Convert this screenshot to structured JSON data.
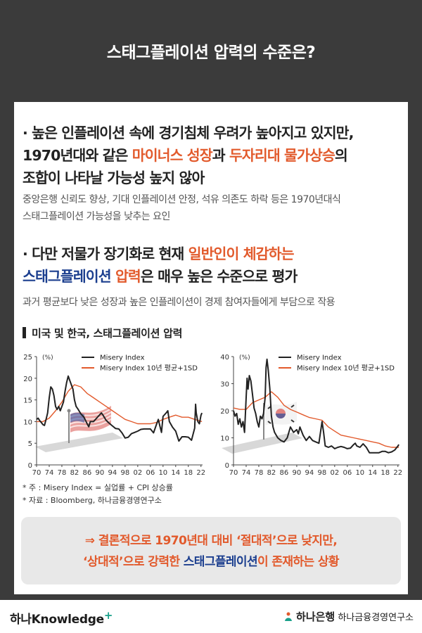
{
  "header": {
    "title": "스태그플레이션 압력의 수준은?"
  },
  "section1": {
    "line1": "· 높은 인플레이션 속에 경기침체 우려가 높아지고 있지만,",
    "line2_pre": "1970년대와 같은 ",
    "line2_hl1": "마이너스 성장",
    "line2_mid": "과 ",
    "line2_hl2": "두자리대 물가상승",
    "line2_post": "의",
    "line3": "조합이 나타날 가능성 높지 않아",
    "sub1": "중앙은행 신뢰도 향상, 기대 인플레이션 안정, 석유 의존도 하락 등은 1970년대식",
    "sub2": "스태그플레이션 가능성을 낮추는 요인"
  },
  "section2": {
    "line1_pre": "· 다만 저물가 장기화로 현재 ",
    "line1_hl": "일반인이 체감하는",
    "line2_hl_blue": "스태그플레이션",
    "line2_hl_red": " 압력",
    "line2_post": "은 매우 높은 수준으로 평가",
    "sub": "과거 평균보다 낮은 성장과 높은 인플레이션이 경제 참여자들에게 부담으로 작용"
  },
  "chart_title": "미국 및 한국, 스태그플레이션 압력",
  "chart_data": [
    {
      "type": "line",
      "country": "US",
      "unit": "(%)",
      "ylim": [
        0,
        25
      ],
      "yticks": [
        0,
        5,
        10,
        15,
        20,
        25
      ],
      "xticks": [
        "70",
        "74",
        "78",
        "82",
        "86",
        "90",
        "94",
        "98",
        "02",
        "06",
        "10",
        "14",
        "18",
        "22"
      ],
      "xlim": [
        1970,
        2022.5
      ],
      "series": [
        {
          "name": "Misery Index",
          "color": "#222222",
          "x": [
            1970,
            1970.5,
            1971,
            1971.5,
            1972,
            1972.5,
            1973,
            1973.5,
            1974,
            1974.5,
            1975,
            1975.5,
            1976,
            1976.5,
            1977,
            1977.5,
            1978,
            1978.5,
            1979,
            1979.5,
            1980,
            1980.5,
            1981,
            1981.5,
            1982,
            1982.5,
            1983,
            1984,
            1985,
            1986,
            1986.5,
            1987,
            1988,
            1989,
            1990,
            1990.5,
            1991,
            1992,
            1993,
            1994,
            1995,
            1996,
            1997,
            1998,
            1999,
            2000,
            2001,
            2002,
            2003,
            2004,
            2005,
            2006,
            2007,
            2008,
            2008.5,
            2009,
            2009.5,
            2010,
            2011,
            2011.5,
            2012,
            2013,
            2014,
            2015,
            2016,
            2017,
            2018,
            2019,
            2020,
            2020.3,
            2020.5,
            2021,
            2021.5,
            2022,
            2022.3
          ],
          "values": [
            10.5,
            10.8,
            10.2,
            9.8,
            9.3,
            9.1,
            10.5,
            12,
            15.5,
            18,
            17.5,
            16,
            13.5,
            12.8,
            13.5,
            12.5,
            13.5,
            14.5,
            17,
            19,
            20.5,
            19.5,
            18.5,
            17.5,
            15,
            13.5,
            13,
            11.8,
            11,
            9.5,
            8.8,
            10,
            10,
            10.8,
            11.6,
            12,
            11.5,
            10.3,
            9.6,
            9,
            8.4,
            8.3,
            7.4,
            6.2,
            6.4,
            7.2,
            7.5,
            7.8,
            8.2,
            8.3,
            8.3,
            8.3,
            7.4,
            9.5,
            10.5,
            9,
            7.5,
            11.2,
            12,
            12.5,
            10,
            8.7,
            7.8,
            5.5,
            6.5,
            6.5,
            6.4,
            5.7,
            8.5,
            14,
            12,
            10,
            9.5,
            11.5,
            12
          ]
        },
        {
          "name": "Misery Index 10년 평균+1SD",
          "color": "#e25a2c",
          "x": [
            1970,
            1972,
            1974,
            1976,
            1978,
            1980,
            1982,
            1984,
            1986,
            1988,
            1990,
            1992,
            1994,
            1996,
            1998,
            2000,
            2002,
            2004,
            2006,
            2008,
            2010,
            2012,
            2014,
            2016,
            2018,
            2020,
            2022.3
          ],
          "values": [
            10,
            10,
            10.8,
            12.5,
            14.5,
            17,
            18.5,
            18,
            16.5,
            15.5,
            14.5,
            13.5,
            12.5,
            11.5,
            10.5,
            10,
            9.5,
            9.5,
            9.5,
            9.8,
            10.5,
            11,
            11.5,
            11,
            11,
            10.5,
            10
          ]
        }
      ],
      "legend_position": "top-right"
    },
    {
      "type": "line",
      "country": "Korea",
      "unit": "(%)",
      "ylim": [
        0,
        40
      ],
      "yticks": [
        0,
        10,
        20,
        30,
        40
      ],
      "xticks": [
        "70",
        "74",
        "78",
        "82",
        "86",
        "90",
        "94",
        "98",
        "02",
        "06",
        "10",
        "14",
        "18",
        "22"
      ],
      "xlim": [
        1970,
        2022.5
      ],
      "series": [
        {
          "name": "Misery Index",
          "color": "#222222",
          "x": [
            1970,
            1970.5,
            1971,
            1971.5,
            1972,
            1972.5,
            1973,
            1973.5,
            1974,
            1974.3,
            1974.6,
            1975,
            1975.5,
            1976,
            1976.5,
            1977,
            1977.5,
            1978,
            1978.5,
            1979,
            1979.5,
            1980,
            1980.3,
            1980.6,
            1981,
            1981.5,
            1982,
            1982.5,
            1983,
            1984,
            1985,
            1986,
            1987,
            1988,
            1989,
            1990,
            1990.5,
            1991,
            1992,
            1993,
            1994,
            1995,
            1996,
            1997,
            1998,
            1998.5,
            1999,
            2000,
            2001,
            2002,
            2003,
            2004,
            2005,
            2006,
            2007,
            2008,
            2008.5,
            2009,
            2010,
            2011,
            2012,
            2013,
            2014,
            2015,
            2016,
            2017,
            2018,
            2019,
            2020,
            2021,
            2022,
            2022.3
          ],
          "values": [
            20,
            18,
            19,
            15,
            17,
            14,
            16,
            12,
            25,
            32,
            28,
            33,
            31,
            26,
            21,
            19,
            16,
            14,
            18,
            17,
            19,
            25,
            36,
            39,
            35,
            28,
            18,
            14,
            12,
            10,
            9,
            8.5,
            10,
            14,
            12,
            13,
            11.5,
            14,
            11,
            9,
            10.5,
            9,
            8.5,
            8,
            16,
            12,
            7,
            6.5,
            7,
            6,
            6.5,
            6.8,
            6.5,
            6,
            6.2,
            7.5,
            8,
            7,
            6.5,
            7.8,
            6.5,
            4.5,
            4.5,
            4.5,
            4.5,
            5,
            5,
            4.5,
            4.8,
            5.5,
            7,
            7.5
          ]
        },
        {
          "name": "Misery Index 10년 평균+1SD",
          "color": "#e25a2c",
          "x": [
            1970,
            1972,
            1974,
            1976,
            1978,
            1980,
            1982,
            1984,
            1986,
            1988,
            1990,
            1992,
            1994,
            1996,
            1998,
            2000,
            2002,
            2004,
            2006,
            2008,
            2010,
            2012,
            2014,
            2016,
            2018,
            2020,
            2022.3
          ],
          "values": [
            21,
            20.5,
            20.5,
            23,
            24,
            25,
            27,
            25,
            22,
            20.5,
            19.5,
            18.5,
            17.5,
            17,
            16.5,
            14,
            12.5,
            11,
            10.5,
            10,
            9.5,
            9,
            8.5,
            8,
            7,
            6.5,
            6.5
          ]
        }
      ],
      "legend_position": "top-right"
    }
  ],
  "notes": {
    "note1": "* 주 : Misery Index = 실업률 + CPI 상승률",
    "note2": "* 자료 : Bloomberg, 하나금융경영연구소"
  },
  "conclusion": {
    "l1_pre": "⇒ 결론적으로 1970년대 대비 ‘절대적’으로 낮지만,",
    "l2_red": "‘상대적’으로 강력한 ",
    "l2_blue": "스태그플레이션",
    "l2_post": "이 존재하는 상황"
  },
  "footer": {
    "logo_left": "하나Knowledge",
    "logo_left_plus": "+",
    "logo_right_bank": "하나은행",
    "logo_right_institute": "하나금융경영연구소"
  },
  "colors": {
    "accent_red": "#e25a2c",
    "accent_blue": "#1c3f8f",
    "header_bg": "#3b3b3b"
  }
}
